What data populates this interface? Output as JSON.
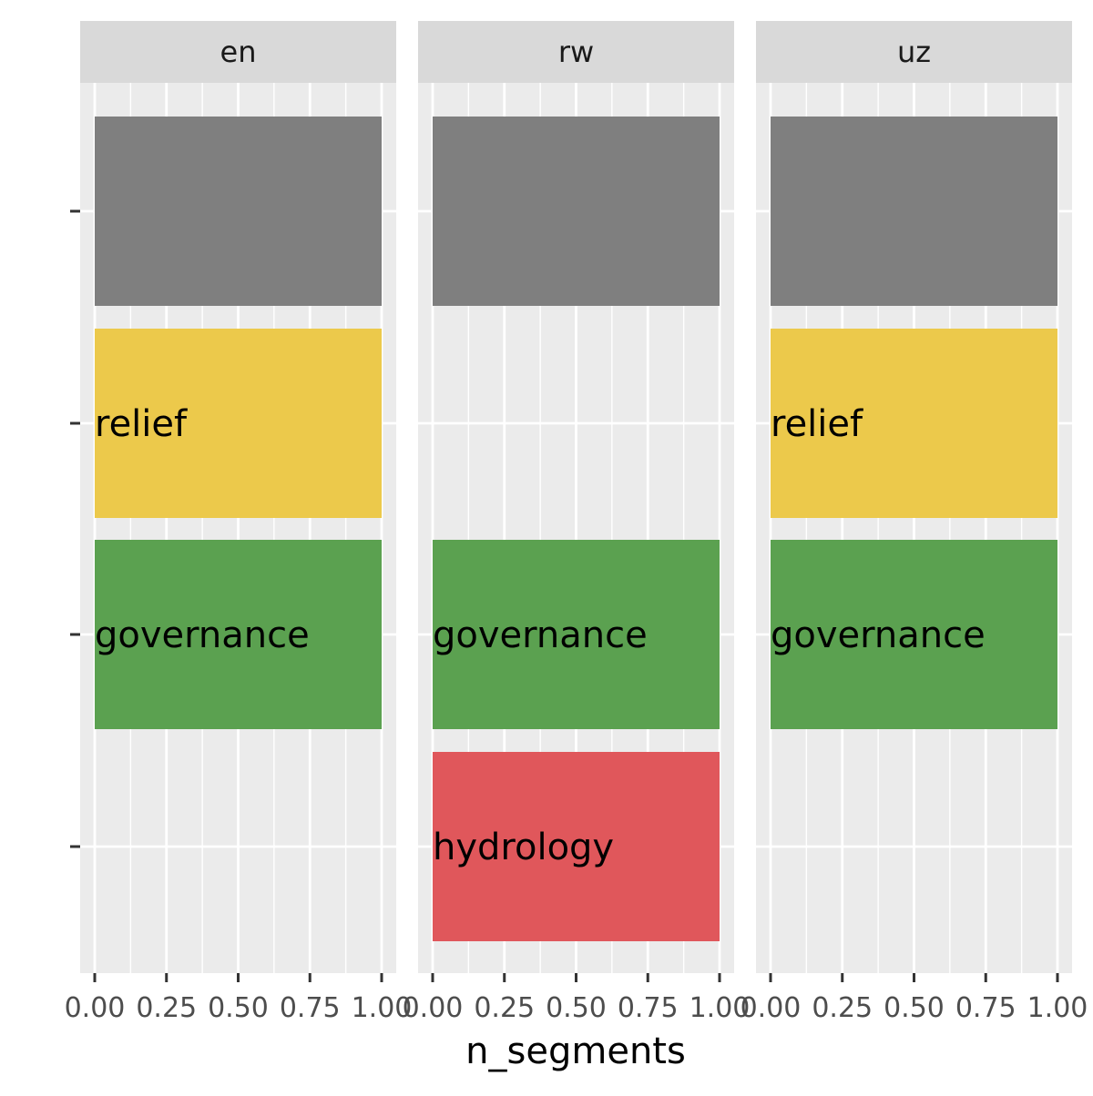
{
  "chart_data": {
    "type": "bar",
    "orientation": "horizontal",
    "facet_var_labels": [
      "en",
      "rw",
      "uz"
    ],
    "xlabel": "n_segments",
    "ylabel": "",
    "xlim": [
      0,
      1
    ],
    "x_ticks": [
      0,
      0.25,
      0.5,
      0.75,
      1
    ],
    "x_tick_labels": [
      "0.00",
      "0.25",
      "0.50",
      "0.75",
      "1.00"
    ],
    "y_categories": [
      "",
      "relief",
      "governance",
      "hydrology"
    ],
    "grid": true,
    "legend": "none",
    "colors": {
      "panel_bg": "#ebebeb",
      "strip_bg": "#d9d9d9",
      "grid": "#ffffff",
      "unlabeled": "#7f7f7f",
      "relief": "#ecc94b",
      "governance": "#5ba150",
      "hydrology": "#e0575b"
    },
    "facets": [
      {
        "name": "en",
        "bars": [
          {
            "category": "",
            "label": "",
            "value": 1,
            "color_key": "unlabeled"
          },
          {
            "category": "relief",
            "label": "relief",
            "value": 1,
            "color_key": "relief"
          },
          {
            "category": "governance",
            "label": "governance",
            "value": 1,
            "color_key": "governance"
          }
        ]
      },
      {
        "name": "rw",
        "bars": [
          {
            "category": "",
            "label": "",
            "value": 1,
            "color_key": "unlabeled"
          },
          {
            "category": "governance",
            "label": "governance",
            "value": 1,
            "color_key": "governance"
          },
          {
            "category": "hydrology",
            "label": "hydrology",
            "value": 1,
            "color_key": "hydrology"
          }
        ]
      },
      {
        "name": "uz",
        "bars": [
          {
            "category": "",
            "label": "",
            "value": 1,
            "color_key": "unlabeled"
          },
          {
            "category": "relief",
            "label": "relief",
            "value": 1,
            "color_key": "relief"
          },
          {
            "category": "governance",
            "label": "governance",
            "value": 1,
            "color_key": "governance"
          }
        ]
      }
    ]
  }
}
